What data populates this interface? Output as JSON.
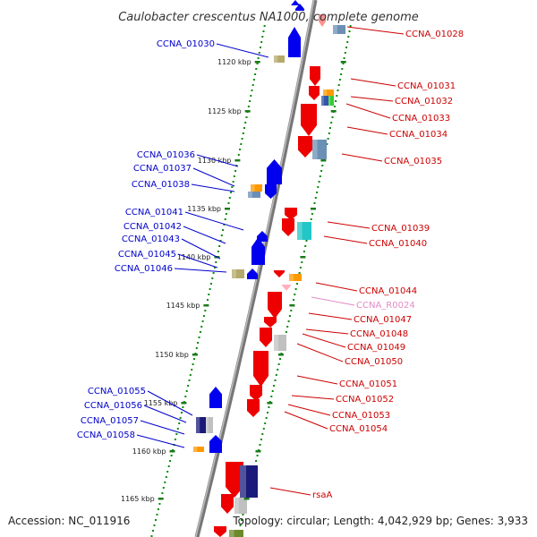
{
  "title": "Caulobacter crescentus NA1000, complete genome",
  "footer": {
    "accession": "Accession: NC_011916",
    "summary": "Topology: circular; Length: 4,042,929 bp; Genes: 3,933"
  },
  "colors": {
    "forward_strand": "#0000ee",
    "reverse_strand": "#ee0000",
    "blue_label": "#0000cc",
    "red_label": "#cc0000",
    "rna_label": "#e58bc8",
    "tick_dots": "#0a8a0a",
    "backbone": "#8c8c8c"
  },
  "scale": {
    "unit": "kbp",
    "labels": [
      "1120 kbp",
      "1125 kbp",
      "1130 kbp",
      "1135 kbp",
      "1140 kbp",
      "1145 kbp",
      "1150 kbp",
      "1155 kbp",
      "1160 kbp",
      "1165 kbp"
    ]
  },
  "left_labels": [
    "CCNA_01030",
    "CCNA_01036",
    "CCNA_01037",
    "CCNA_01038",
    "CCNA_01041",
    "CCNA_01042",
    "CCNA_01043",
    "CCNA_01045",
    "CCNA_01046",
    "CCNA_01055",
    "CCNA_01056",
    "CCNA_01057",
    "CCNA_01058"
  ],
  "right_labels": [
    "CCNA_01028",
    "CCNA_01031",
    "CCNA_01032",
    "CCNA_01033",
    "CCNA_01034",
    "CCNA_01035",
    "CCNA_01039",
    "CCNA_01040",
    "CCNA_01044",
    "CCNA_R0024",
    "CCNA_01047",
    "CCNA_01048",
    "CCNA_01049",
    "CCNA_01050",
    "CCNA_01051",
    "CCNA_01052",
    "CCNA_01053",
    "CCNA_01054",
    "rsaA"
  ]
}
